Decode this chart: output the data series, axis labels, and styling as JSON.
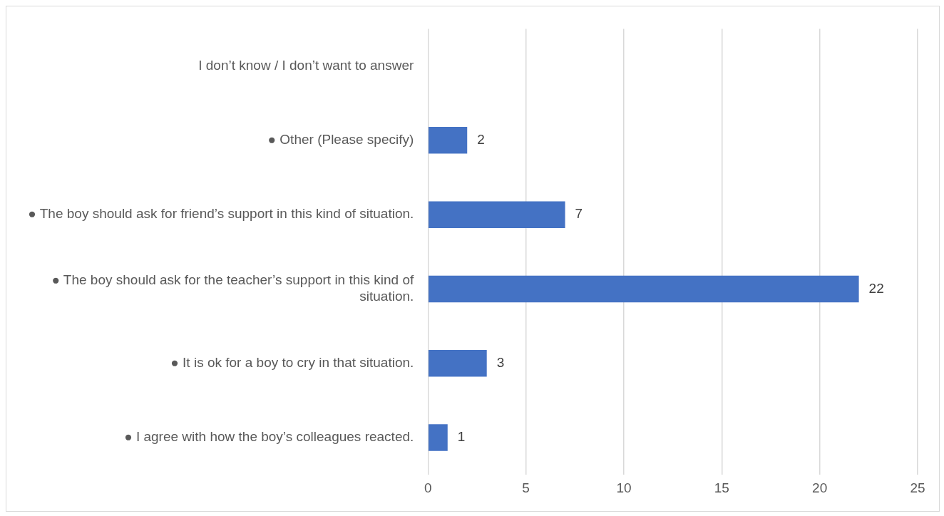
{
  "chart_data": {
    "type": "bar",
    "orientation": "horizontal",
    "categories": [
      "I don’t know / I don’t want to answer",
      "● Other (Please specify)",
      "● The boy should ask for friend’s support in this kind of situation.",
      "● The boy should ask for the teacher’s support in this kind of situation.",
      "● It is ok for a boy to cry in that situation.",
      "● I agree with how the boy’s colleagues reacted."
    ],
    "values": [
      0,
      2,
      7,
      22,
      3,
      1
    ],
    "value_labels": [
      null,
      "2",
      "7",
      "22",
      "3",
      "1"
    ],
    "color": "#4472c4",
    "xlim": [
      0,
      25
    ],
    "xticks": [
      0,
      5,
      10,
      15,
      20,
      25
    ],
    "grid": "x"
  }
}
